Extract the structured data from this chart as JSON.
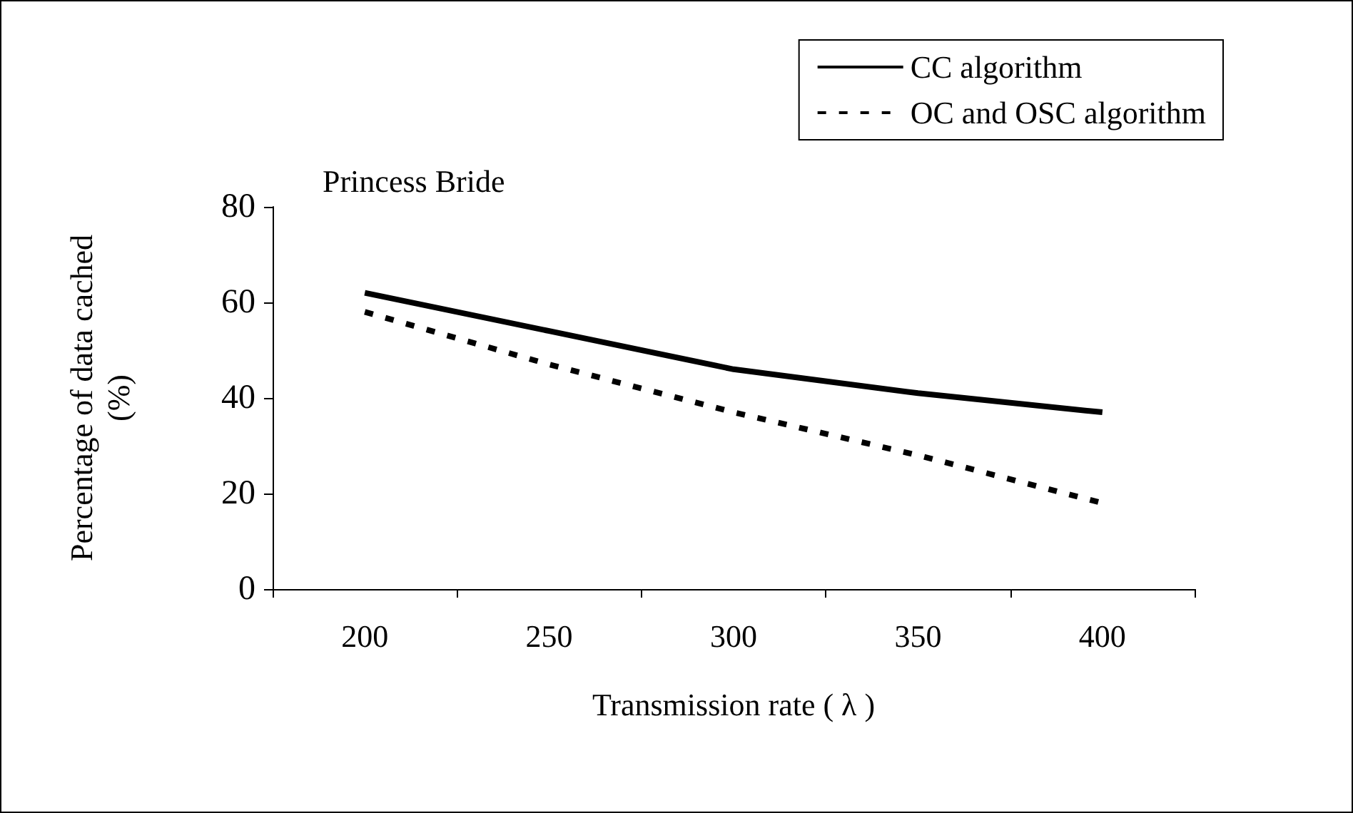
{
  "chart_data": {
    "type": "line",
    "xlabel": "Transmission rate ( λ )",
    "ylabel": "Percentage of data cached (%)",
    "annotations": [
      "Princess Bride"
    ],
    "categories": [
      "200",
      "250",
      "300",
      "350",
      "400"
    ],
    "series": [
      {
        "name": "CC algorithm",
        "color": "#000000",
        "line_style": "solid",
        "values": [
          62,
          54,
          46,
          41,
          37
        ]
      },
      {
        "name": "OC and OSC algorithm",
        "color": "#000000",
        "line_style": "dashed",
        "values": [
          58,
          47,
          37,
          28,
          18
        ]
      }
    ],
    "ylim": [
      0,
      80
    ],
    "yticks": [
      0,
      20,
      40,
      60,
      80
    ],
    "grid": false,
    "legend": "top right",
    "marker": "none"
  }
}
